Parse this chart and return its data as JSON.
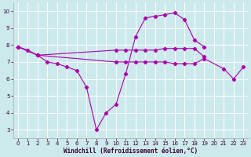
{
  "xlabel": "Windchill (Refroidissement éolien,°C)",
  "background_color": "#cce9ec",
  "grid_color": "#ffffff",
  "line_color": "#aa00aa",
  "ylim": [
    2.5,
    10.5
  ],
  "xlim": [
    -0.5,
    23.5
  ],
  "yticks": [
    3,
    4,
    5,
    6,
    7,
    8,
    9,
    10
  ],
  "xticks": [
    0,
    1,
    2,
    3,
    4,
    5,
    6,
    7,
    8,
    9,
    10,
    11,
    12,
    13,
    14,
    15,
    16,
    17,
    18,
    19,
    20,
    21,
    22,
    23
  ],
  "line1_x": [
    0,
    1,
    2,
    3,
    4,
    5,
    6,
    7,
    8,
    9,
    10,
    11,
    12,
    13,
    14,
    15,
    16,
    17,
    18,
    19
  ],
  "line1_y": [
    7.9,
    7.7,
    7.4,
    7.0,
    6.9,
    6.7,
    6.5,
    5.5,
    3.0,
    4.0,
    4.5,
    6.3,
    8.5,
    9.6,
    9.7,
    9.8,
    9.9,
    9.5,
    8.3,
    7.9
  ],
  "line2_x": [
    0,
    2,
    10,
    11,
    12,
    13,
    14,
    15,
    16,
    17,
    18,
    19
  ],
  "line2_y": [
    7.9,
    7.4,
    7.7,
    7.7,
    7.7,
    7.7,
    7.7,
    7.8,
    7.8,
    7.8,
    7.8,
    7.3
  ],
  "line3_x": [
    0,
    2,
    10,
    11,
    12,
    13,
    14,
    15,
    16,
    17,
    18,
    19,
    21,
    22,
    23
  ],
  "line3_y": [
    7.9,
    7.4,
    7.0,
    7.0,
    7.0,
    7.0,
    7.0,
    7.0,
    6.9,
    6.9,
    6.9,
    7.2,
    6.6,
    6.0,
    6.7
  ],
  "tick_labelsize": 5,
  "xlabel_fontsize": 5.5
}
